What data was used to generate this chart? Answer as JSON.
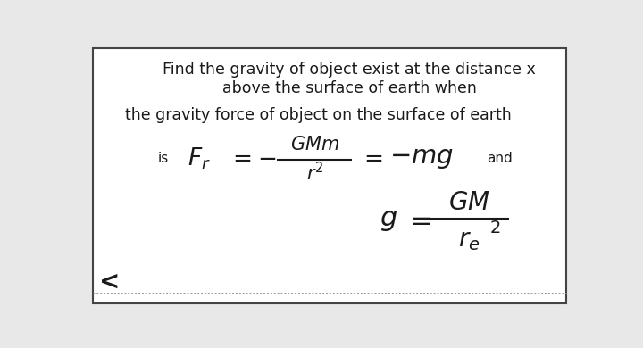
{
  "bg_color": "#e8e8e8",
  "box_color": "#ffffff",
  "border_color": "#444444",
  "text_color": "#1a1a1a",
  "title_line1": "Find the gravity of object exist at the distance x",
  "title_line2": "above the surface of earth when",
  "subtitle": "the gravity force of object on the surface of earth",
  "fig_width": 7.2,
  "fig_height": 3.9,
  "dpi": 100
}
